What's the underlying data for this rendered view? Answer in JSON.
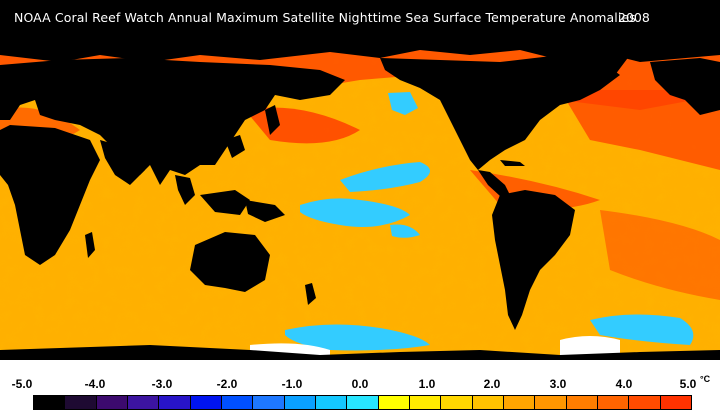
{
  "title": "NOAA Coral Reef Watch Annual Maximum Satellite Nighttime Sea Surface Temperature Anomalies",
  "year": "2008",
  "colorbar": {
    "unit": "°C",
    "ticks": [
      "-5.0",
      "-4.0",
      "-3.0",
      "-2.0",
      "-1.0",
      "0.0",
      "1.0",
      "2.0",
      "3.0",
      "4.0",
      "5.0"
    ],
    "swatch_colors": [
      "#000000",
      "#1e0a32",
      "#3c0a6e",
      "#3c14a0",
      "#2814c8",
      "#0014f0",
      "#0050ff",
      "#1e78ff",
      "#0aa0ff",
      "#14c8ff",
      "#28e6ff",
      "#ffff00",
      "#ffeb00",
      "#ffd700",
      "#ffc300",
      "#ffa500",
      "#ff9600",
      "#ff7d00",
      "#ff6400",
      "#ff4b00",
      "#ff3200"
    ]
  },
  "legend_colors": {
    "land": "#000000",
    "ice": "#ffffff",
    "ocean_warm": "#ffcc00",
    "ocean_hot": "#ff5500",
    "ocean_cool": "#33ccff"
  }
}
